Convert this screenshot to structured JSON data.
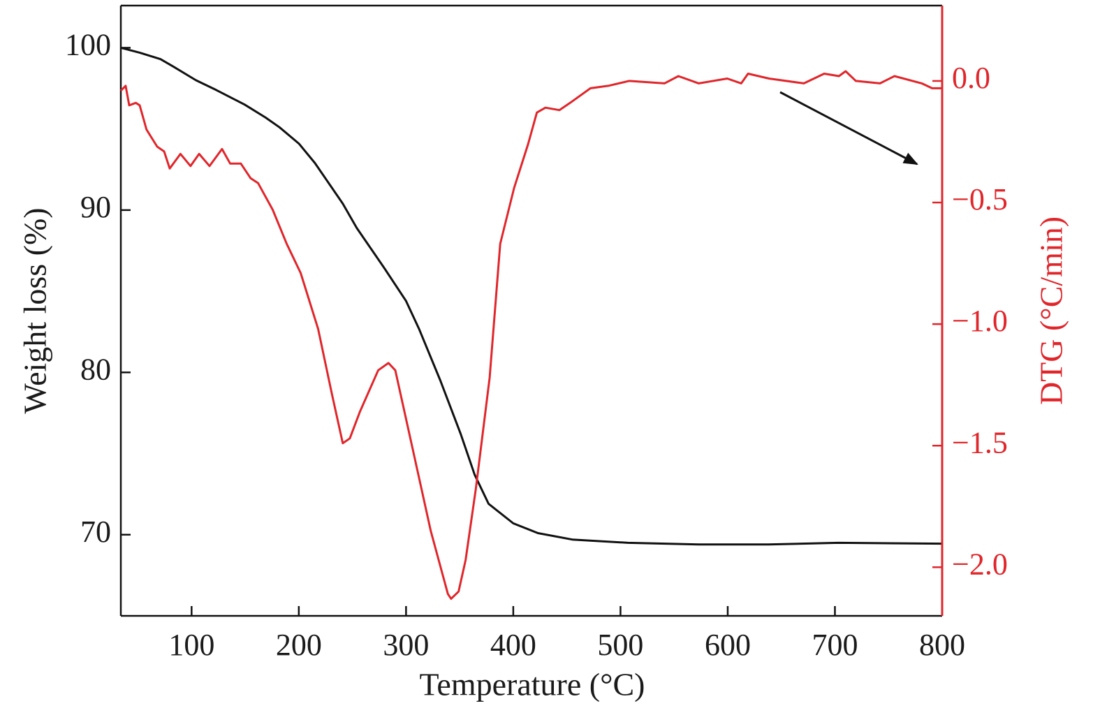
{
  "chart_data": {
    "type": "line",
    "xlabel": "Temperature (°C)",
    "ylabel": "Weight loss (%)",
    "y2label": "DTG (°C/min)",
    "xlim": [
      34,
      800
    ],
    "xticks": [
      100,
      200,
      300,
      400,
      500,
      600,
      700,
      800
    ],
    "ylim": [
      65,
      102.6
    ],
    "yticks": [
      70,
      80,
      90,
      100
    ],
    "y2lim": [
      -2.2,
      0.31
    ],
    "y2ticks": [
      {
        "value": 0,
        "label": "0.0"
      },
      {
        "value": -0.5,
        "label": "−0.5"
      },
      {
        "value": -1.0,
        "label": "−1.0"
      },
      {
        "value": -1.5,
        "label": "−1.5"
      },
      {
        "value": -2.0,
        "label": "−2.0"
      }
    ],
    "y2color": "#e0262b",
    "series": [
      {
        "color": "#111111",
        "axis": "y",
        "x": [
          34,
          51.6,
          71,
          84,
          104,
          123,
          149.5,
          169,
          182,
          200,
          215,
          241,
          254,
          280,
          300,
          312,
          332,
          351,
          364,
          377,
          400,
          423,
          455,
          507,
          573,
          638,
          703,
          800
        ],
        "values": [
          100.0,
          99.7,
          99.3,
          98.8,
          98.0,
          97.4,
          96.5,
          95.7,
          95.1,
          94.1,
          92.9,
          90.4,
          88.9,
          86.4,
          84.4,
          82.7,
          79.5,
          76.2,
          73.7,
          71.9,
          70.7,
          70.1,
          69.7,
          69.5,
          69.4,
          69.4,
          69.5,
          69.45
        ]
      },
      {
        "color": "#e0262b",
        "axis": "y2",
        "x": [
          34,
          38.5,
          41.8,
          48,
          51.6,
          58,
          67.9,
          74.4,
          79.6,
          89.6,
          99,
          107,
          116.7,
          128.4,
          136,
          146,
          155,
          162,
          175.7,
          188.7,
          201.7,
          218,
          231,
          241,
          247.6,
          257,
          274,
          283.6,
          290,
          306,
          323,
          339,
          342,
          349,
          355.6,
          365,
          378,
          387.8,
          400.8,
          413.8,
          422,
          430,
          443,
          453,
          472,
          488.6,
          508,
          541,
          554,
          573,
          599.6,
          612.6,
          619,
          638.5,
          671,
          690,
          703.7,
          710,
          719.5,
          742,
          755.5,
          781,
          790.6,
          800
        ],
        "values": [
          -0.04,
          -0.02,
          -0.1,
          -0.09,
          -0.1,
          -0.2,
          -0.27,
          -0.29,
          -0.36,
          -0.3,
          -0.35,
          -0.3,
          -0.35,
          -0.28,
          -0.34,
          -0.34,
          -0.4,
          -0.42,
          -0.53,
          -0.67,
          -0.79,
          -1.02,
          -1.29,
          -1.49,
          -1.47,
          -1.36,
          -1.19,
          -1.16,
          -1.19,
          -1.51,
          -1.85,
          -2.11,
          -2.13,
          -2.1,
          -1.97,
          -1.68,
          -1.22,
          -0.67,
          -0.44,
          -0.26,
          -0.13,
          -0.11,
          -0.12,
          -0.09,
          -0.03,
          -0.02,
          0.0,
          -0.01,
          0.02,
          -0.01,
          0.01,
          -0.01,
          0.03,
          0.01,
          -0.01,
          0.03,
          0.02,
          0.04,
          0.0,
          -0.01,
          0.02,
          -0.01,
          -0.03,
          -0.03
        ]
      }
    ]
  }
}
